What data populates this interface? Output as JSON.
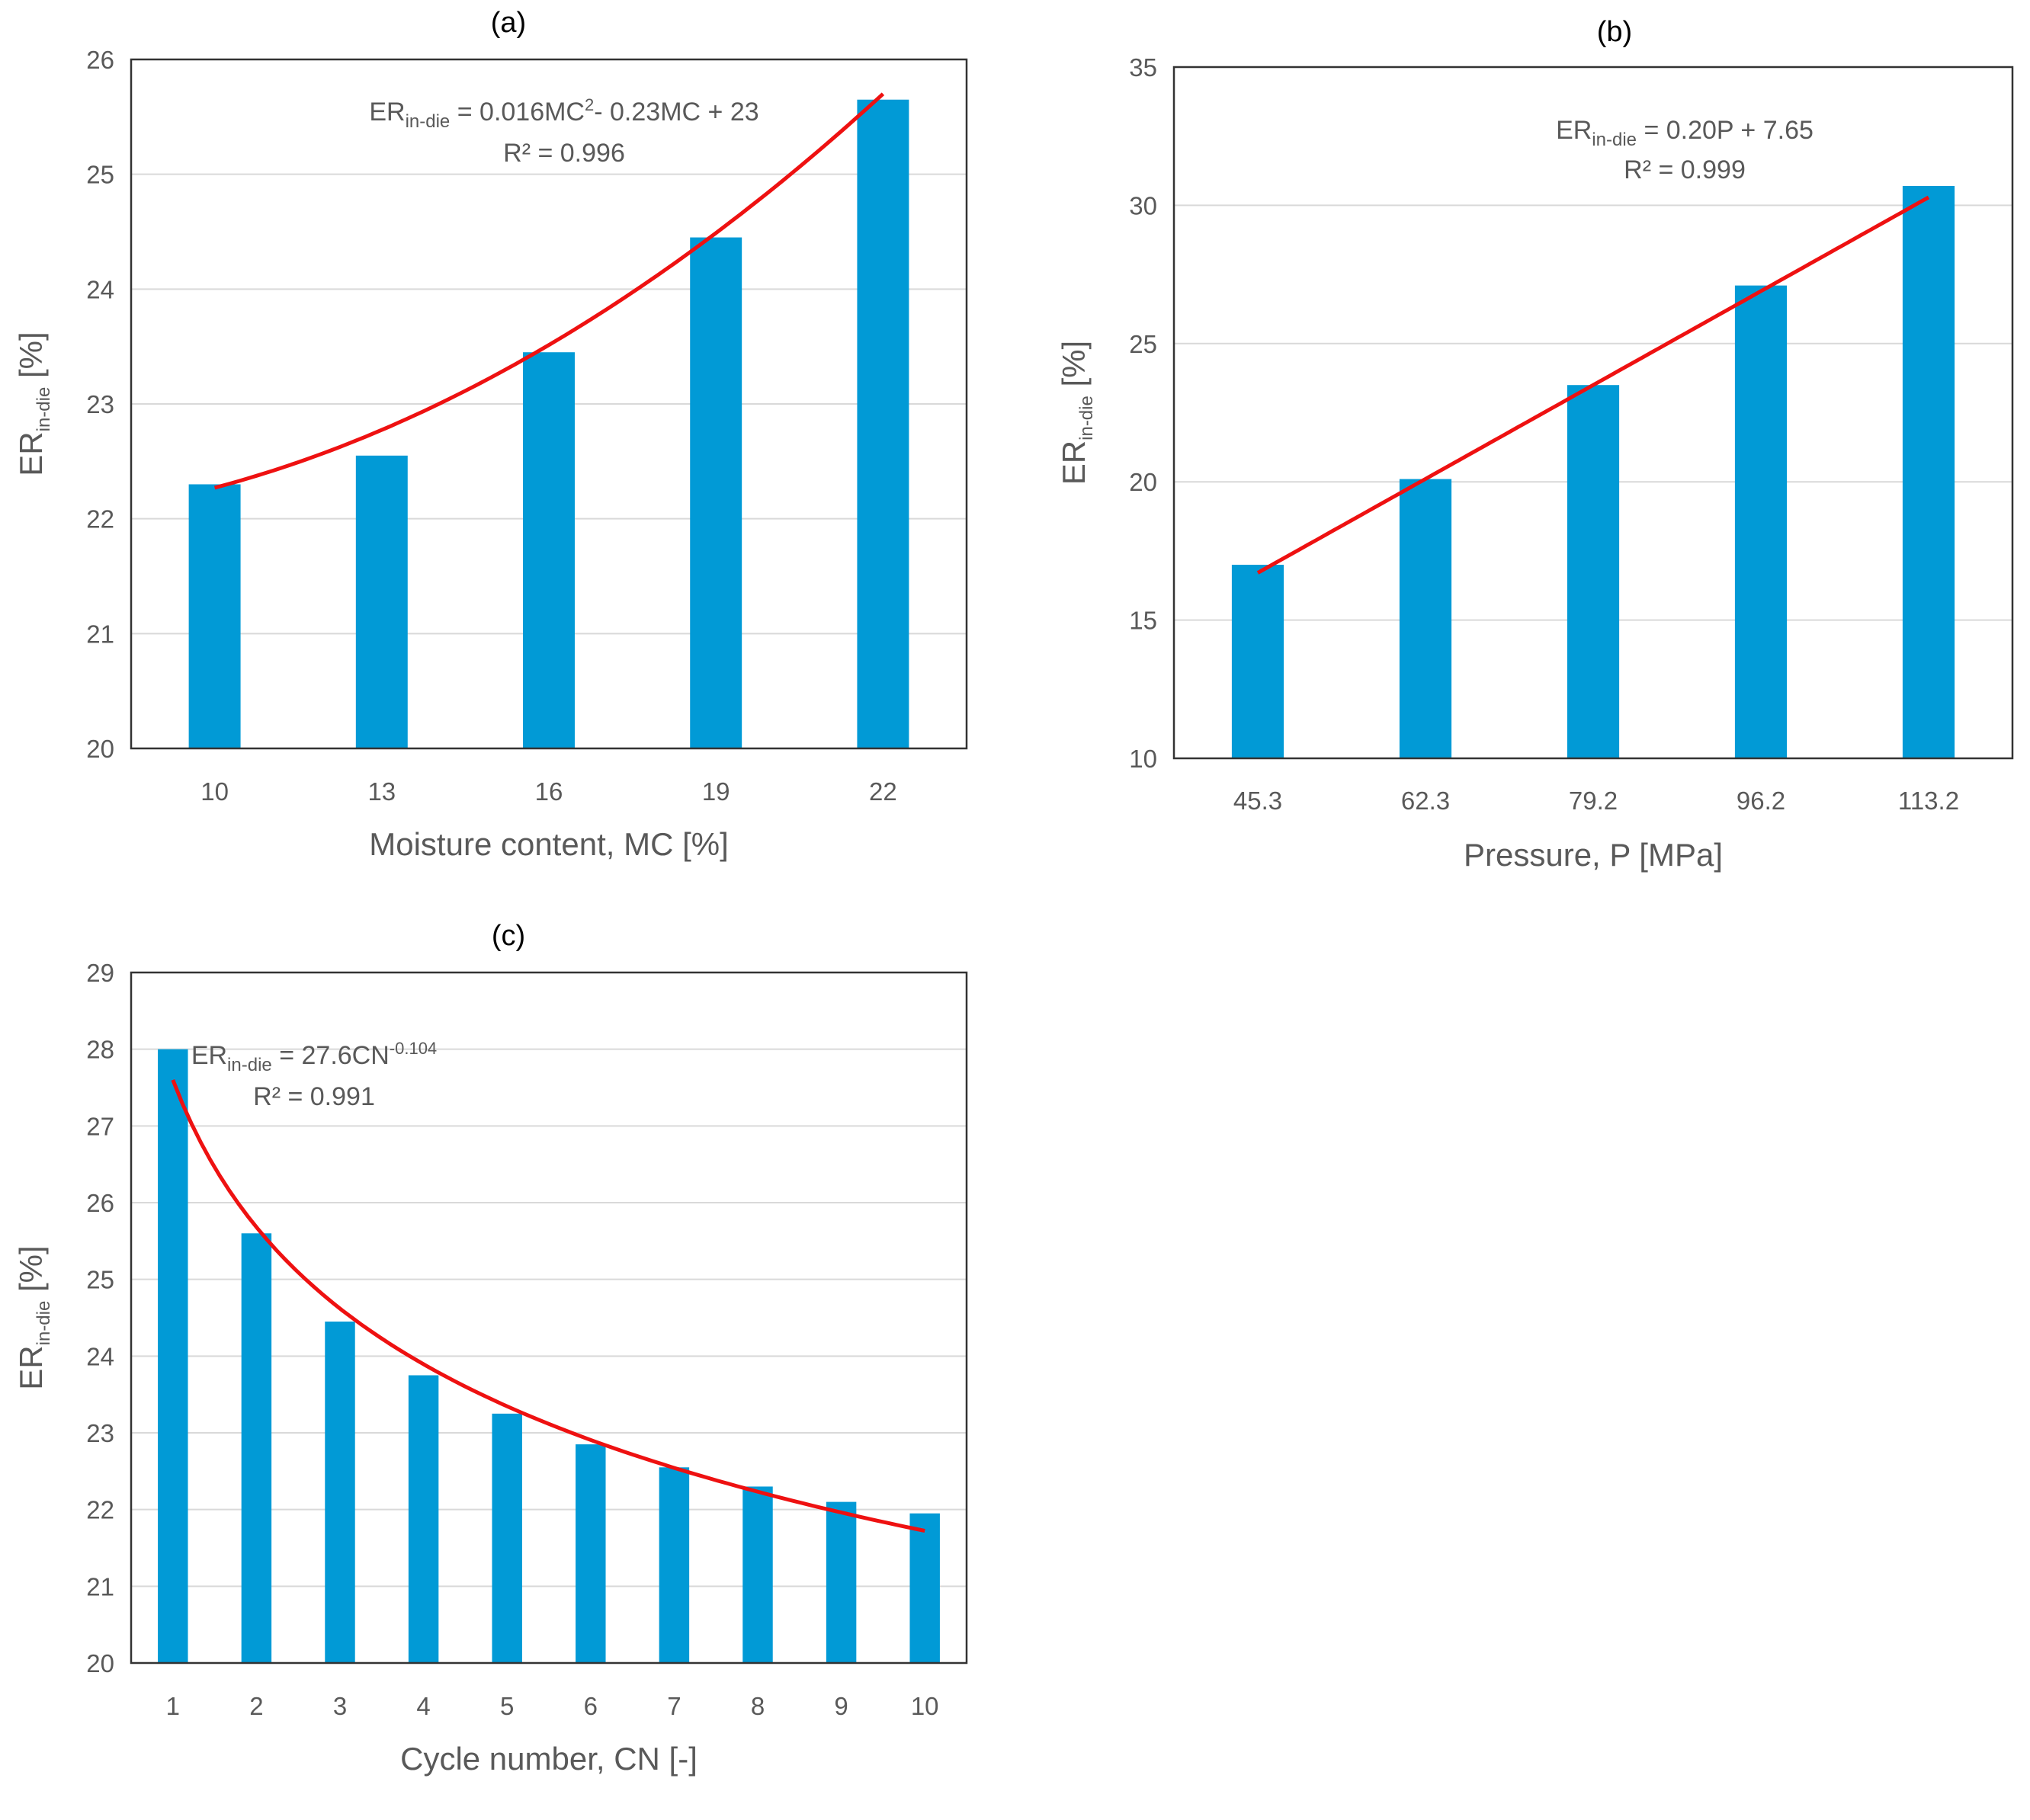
{
  "chart_data": [
    {
      "id": "a",
      "type": "bar",
      "title": "(a)",
      "xlabel": "Moisture content, MC [%]",
      "ylabel_main": "ER",
      "ylabel_sub": "in-die",
      "ylabel_unit": " [%]",
      "categories": [
        "10",
        "13",
        "16",
        "19",
        "22"
      ],
      "x": [
        10,
        13,
        16,
        19,
        22
      ],
      "values": [
        22.3,
        22.55,
        23.45,
        24.45,
        25.65
      ],
      "ylim": [
        20,
        26
      ],
      "yticks": [
        20,
        21,
        22,
        23,
        24,
        25,
        26
      ],
      "grid": true,
      "trendline": {
        "type": "polynomial",
        "coef": [
          0.016,
          -0.23,
          23
        ]
      },
      "equation": {
        "lhs": "ER",
        "lhs_sub": "in-die",
        "rhs": " = 0.016MC",
        "rhs_sup": "2",
        "rhs_tail": "- 0.23MC + 23",
        "r2": "R² = 0.996"
      }
    },
    {
      "id": "b",
      "type": "bar",
      "title": "(b)",
      "xlabel": "Pressure, P [MPa]",
      "ylabel_main": "ER",
      "ylabel_sub": "in-die",
      "ylabel_unit": " [%]",
      "categories": [
        "45.3",
        "62.3",
        "79.2",
        "96.2",
        "113.2"
      ],
      "x": [
        45.3,
        62.3,
        79.2,
        96.2,
        113.2
      ],
      "values": [
        17.0,
        20.1,
        23.5,
        27.1,
        30.7
      ],
      "ylim": [
        10,
        35
      ],
      "yticks": [
        10,
        15,
        20,
        25,
        30,
        35
      ],
      "grid": true,
      "trendline": {
        "type": "linear",
        "coef": [
          0.2,
          7.65
        ]
      },
      "equation": {
        "lhs": "ER",
        "lhs_sub": "in-die",
        "rhs": " = 0.20P + 7.65",
        "rhs_sup": "",
        "rhs_tail": "",
        "r2": "R² = 0.999"
      }
    },
    {
      "id": "c",
      "type": "bar",
      "title": "(c)",
      "xlabel": "Cycle number, CN [-]",
      "ylabel_main": "ER",
      "ylabel_sub": "in-die",
      "ylabel_unit": " [%]",
      "categories": [
        "1",
        "2",
        "3",
        "4",
        "5",
        "6",
        "7",
        "8",
        "9",
        "10"
      ],
      "x": [
        1,
        2,
        3,
        4,
        5,
        6,
        7,
        8,
        9,
        10
      ],
      "values": [
        28.0,
        25.6,
        24.45,
        23.75,
        23.25,
        22.85,
        22.55,
        22.3,
        22.1,
        21.95
      ],
      "ylim": [
        20,
        29
      ],
      "yticks": [
        20,
        21,
        22,
        23,
        24,
        25,
        26,
        27,
        28,
        29
      ],
      "grid": true,
      "trendline": {
        "type": "power",
        "coef": [
          27.6,
          -0.104
        ]
      },
      "equation": {
        "lhs": "ER",
        "lhs_sub": "in-die",
        "rhs": " = 27.6CN",
        "rhs_sup": "-0.104",
        "rhs_tail": "",
        "r2": "R² = 0.991"
      }
    }
  ],
  "colors": {
    "bar": "#019ad6",
    "fit": "#ee1111",
    "grid": "#d9d9d9",
    "frame": "#333333"
  }
}
